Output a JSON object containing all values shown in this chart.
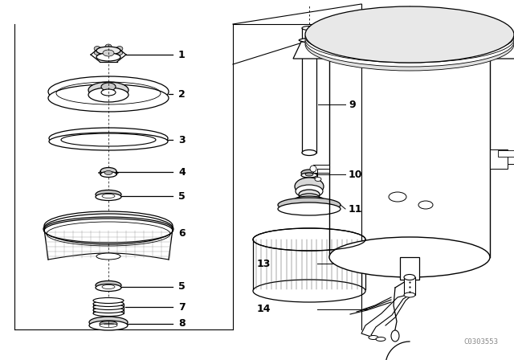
{
  "background_color": "#ffffff",
  "line_color": "#000000",
  "figure_width": 6.4,
  "figure_height": 4.48,
  "dpi": 100,
  "watermark": "C0303553",
  "lw": 0.9
}
